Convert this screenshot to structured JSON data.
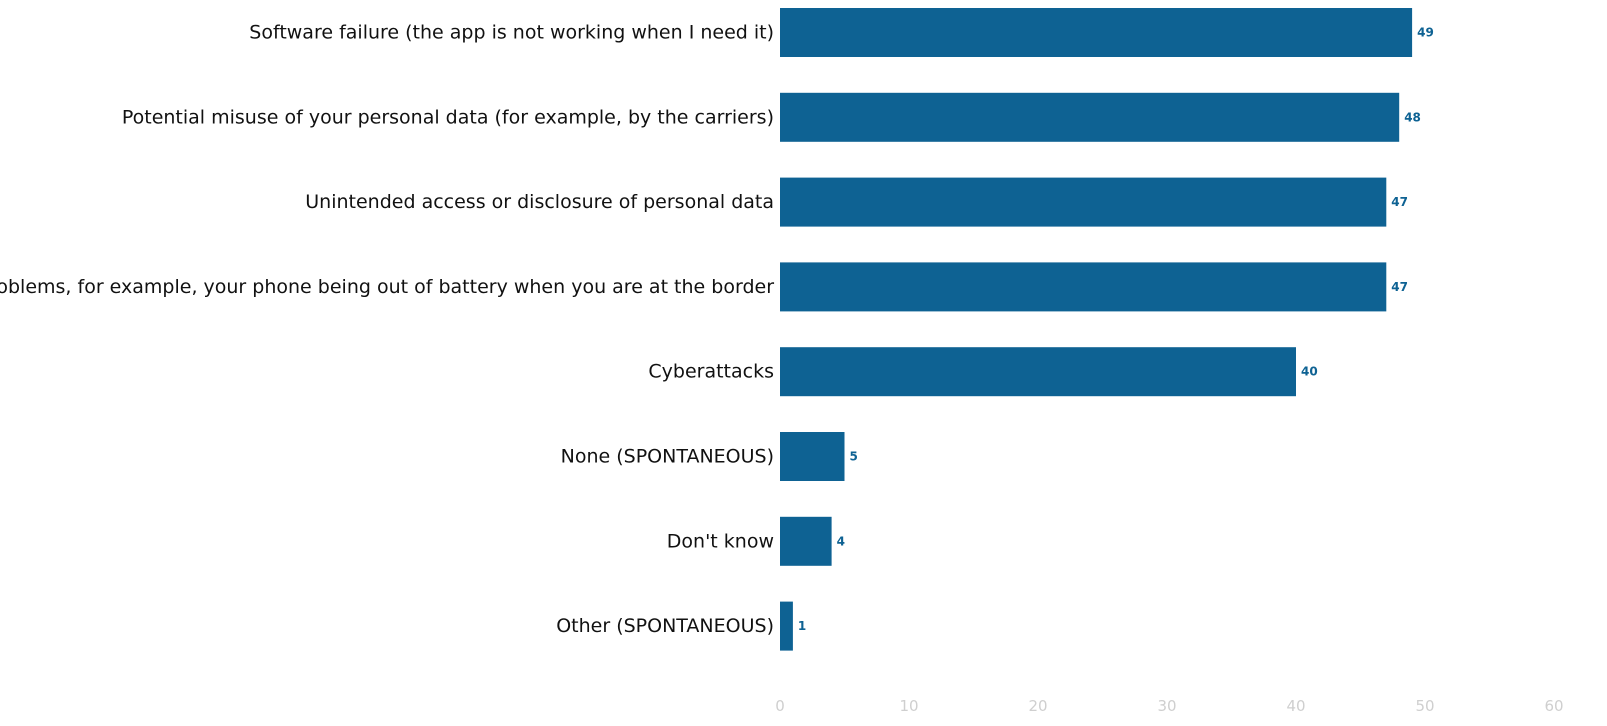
{
  "chart_data": {
    "type": "bar",
    "orientation": "horizontal",
    "categories": [
      "Software failure (the app is not working when I need it)",
      "Potential misuse of your personal data (for example, by the carriers)",
      "Unintended access or disclosure of personal data",
      "Device problems, for example, your phone being out of battery when you are at the border",
      "Cyberattacks",
      "None (SPONTANEOUS)",
      "Don't know",
      "Other (SPONTANEOUS)"
    ],
    "values": [
      49,
      48,
      47,
      47,
      40,
      5,
      4,
      1
    ],
    "xlim": [
      0,
      60
    ],
    "xticks": [
      0,
      10,
      20,
      30,
      40,
      50,
      60
    ],
    "grid": false,
    "bar_color": "#0e6293",
    "label_color": "#0e6293"
  }
}
